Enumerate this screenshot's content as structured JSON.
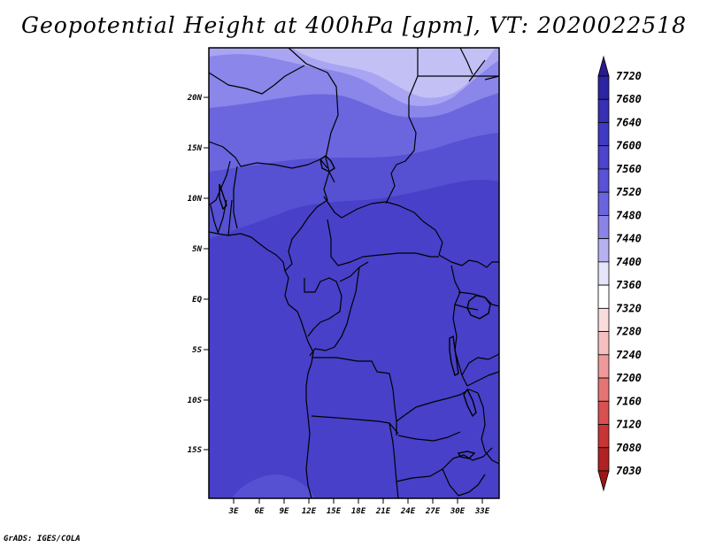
{
  "title": "Geopotential Height at 400hPa [gpm], VT: 2020022518",
  "credit": "GrADS: IGES/COLA",
  "map": {
    "lat_ticks": [
      "20N",
      "15N",
      "10N",
      "5N",
      "EQ",
      "5S",
      "10S",
      "15S"
    ],
    "lon_ticks": [
      "3E",
      "6E",
      "9E",
      "12E",
      "15E",
      "18E",
      "21E",
      "24E",
      "27E",
      "30E",
      "33E"
    ]
  },
  "legend": {
    "labels": [
      "7720",
      "7680",
      "7640",
      "7600",
      "7560",
      "7520",
      "7480",
      "7440",
      "7400",
      "7360",
      "7320",
      "7280",
      "7240",
      "7200",
      "7160",
      "7120",
      "7080",
      "7030"
    ],
    "colors": [
      "#2a1a8e",
      "#2b25a4",
      "#3530b4",
      "#403ac4",
      "#4b44ce",
      "#5852d6",
      "#6a64de",
      "#8a84e6",
      "#b6b2f0",
      "#e6e4f8",
      "#ffffff",
      "#fbdcdc",
      "#f6c0c0",
      "#ef9a9a",
      "#e57474",
      "#d95050",
      "#c93434",
      "#b12222",
      "#9c1616"
    ]
  }
}
